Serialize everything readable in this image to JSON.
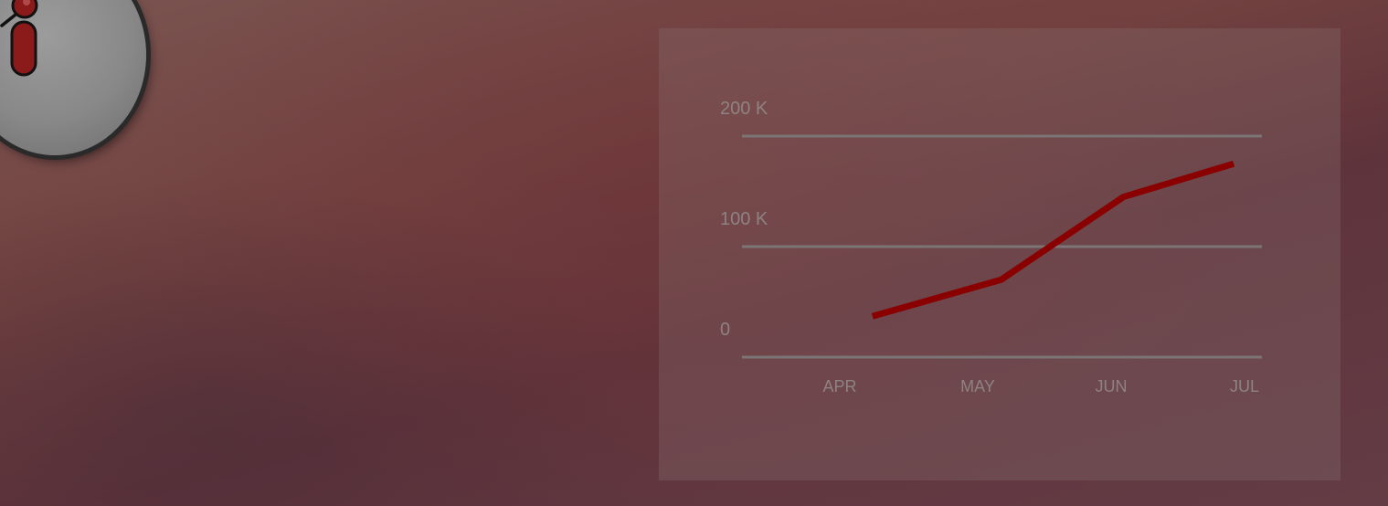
{
  "colors": {
    "line": "#8a0000",
    "grid": "#7b7576",
    "tick_text": "#8e8282",
    "badge_icon": "#8b1a1a"
  },
  "badge": {
    "icon": "info-search-icon"
  },
  "chart_data": {
    "type": "line",
    "title": "",
    "xlabel": "",
    "ylabel": "",
    "categories": [
      "APR",
      "MAY",
      "JUN",
      "JUL"
    ],
    "x_positions": [
      0.2,
      1.25,
      2.25,
      3.15
    ],
    "series": [
      {
        "values": [
          37000,
          70000,
          145000,
          175000
        ]
      }
    ],
    "y_ticks": [
      {
        "value": 0,
        "label": "0"
      },
      {
        "value": 100000,
        "label": "100 K"
      },
      {
        "value": 200000,
        "label": "200 K"
      }
    ],
    "ylim": [
      0,
      200000
    ],
    "grid": true,
    "legend": "none"
  }
}
